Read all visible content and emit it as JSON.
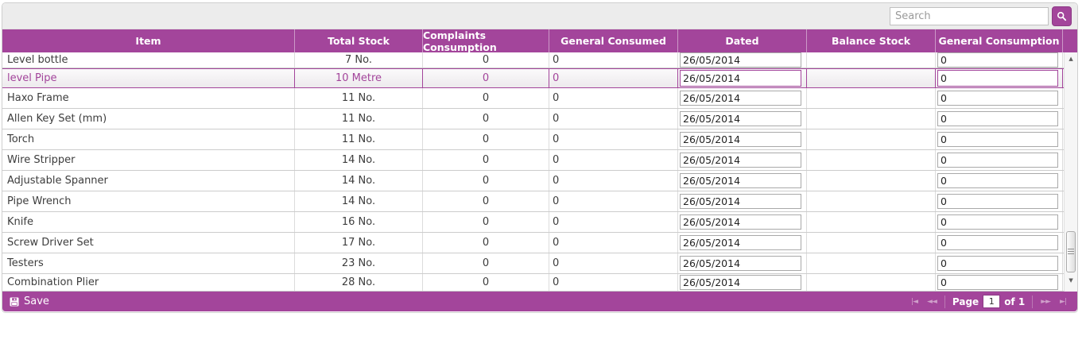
{
  "toolbar": {
    "search_placeholder": "Search",
    "search_icon": "magnifier"
  },
  "columns": [
    {
      "key": "item",
      "label": "Item"
    },
    {
      "key": "total_stock",
      "label": "Total Stock"
    },
    {
      "key": "complaints",
      "label": "Complaints Consumption"
    },
    {
      "key": "general_consumed",
      "label": "General Consumed"
    },
    {
      "key": "dated",
      "label": "Dated"
    },
    {
      "key": "balance",
      "label": "Balance Stock"
    },
    {
      "key": "general_consumption",
      "label": "General Consumption"
    }
  ],
  "rows": [
    {
      "item": "Level bottle",
      "total_stock": "7 No.",
      "complaints": "0",
      "general_consumed": "0",
      "dated": "26/05/2014",
      "balance": "",
      "general_consumption": "0",
      "selected": false
    },
    {
      "item": "level Pipe",
      "total_stock": "10 Metre",
      "complaints": "0",
      "general_consumed": "0",
      "dated": "26/05/2014",
      "balance": "",
      "general_consumption": "0",
      "selected": true
    },
    {
      "item": "Haxo Frame",
      "total_stock": "11 No.",
      "complaints": "0",
      "general_consumed": "0",
      "dated": "26/05/2014",
      "balance": "",
      "general_consumption": "0",
      "selected": false
    },
    {
      "item": "Allen Key Set (mm)",
      "total_stock": "11 No.",
      "complaints": "0",
      "general_consumed": "0",
      "dated": "26/05/2014",
      "balance": "",
      "general_consumption": "0",
      "selected": false
    },
    {
      "item": "Torch",
      "total_stock": "11 No.",
      "complaints": "0",
      "general_consumed": "0",
      "dated": "26/05/2014",
      "balance": "",
      "general_consumption": "0",
      "selected": false
    },
    {
      "item": "Wire Stripper",
      "total_stock": "14 No.",
      "complaints": "0",
      "general_consumed": "0",
      "dated": "26/05/2014",
      "balance": "",
      "general_consumption": "0",
      "selected": false
    },
    {
      "item": "Adjustable Spanner",
      "total_stock": "14 No.",
      "complaints": "0",
      "general_consumed": "0",
      "dated": "26/05/2014",
      "balance": "",
      "general_consumption": "0",
      "selected": false
    },
    {
      "item": "Pipe Wrench",
      "total_stock": "14 No.",
      "complaints": "0",
      "general_consumed": "0",
      "dated": "26/05/2014",
      "balance": "",
      "general_consumption": "0",
      "selected": false
    },
    {
      "item": "Knife",
      "total_stock": "16 No.",
      "complaints": "0",
      "general_consumed": "0",
      "dated": "26/05/2014",
      "balance": "",
      "general_consumption": "0",
      "selected": false
    },
    {
      "item": "Screw Driver Set",
      "total_stock": "17 No.",
      "complaints": "0",
      "general_consumed": "0",
      "dated": "26/05/2014",
      "balance": "",
      "general_consumption": "0",
      "selected": false
    },
    {
      "item": "Testers",
      "total_stock": "23 No.",
      "complaints": "0",
      "general_consumed": "0",
      "dated": "26/05/2014",
      "balance": "",
      "general_consumption": "0",
      "selected": false
    },
    {
      "item": "Combination Plier",
      "total_stock": "28 No.",
      "complaints": "0",
      "general_consumed": "0",
      "dated": "26/05/2014",
      "balance": "",
      "general_consumption": "0",
      "selected": false
    }
  ],
  "footer": {
    "save_label": "Save"
  },
  "pager": {
    "first_icon": "|◄",
    "prev_icon": "◄◄",
    "page_label": "Page",
    "page_value": "1",
    "of_label": "of 1",
    "next_icon": "►►",
    "last_icon": "►|"
  },
  "scrollbar": {
    "up_icon": "▲",
    "down_icon": "▼"
  },
  "colors": {
    "accent": "#a3459b",
    "header_text": "#ffffff",
    "row_border": "#cccccc"
  }
}
